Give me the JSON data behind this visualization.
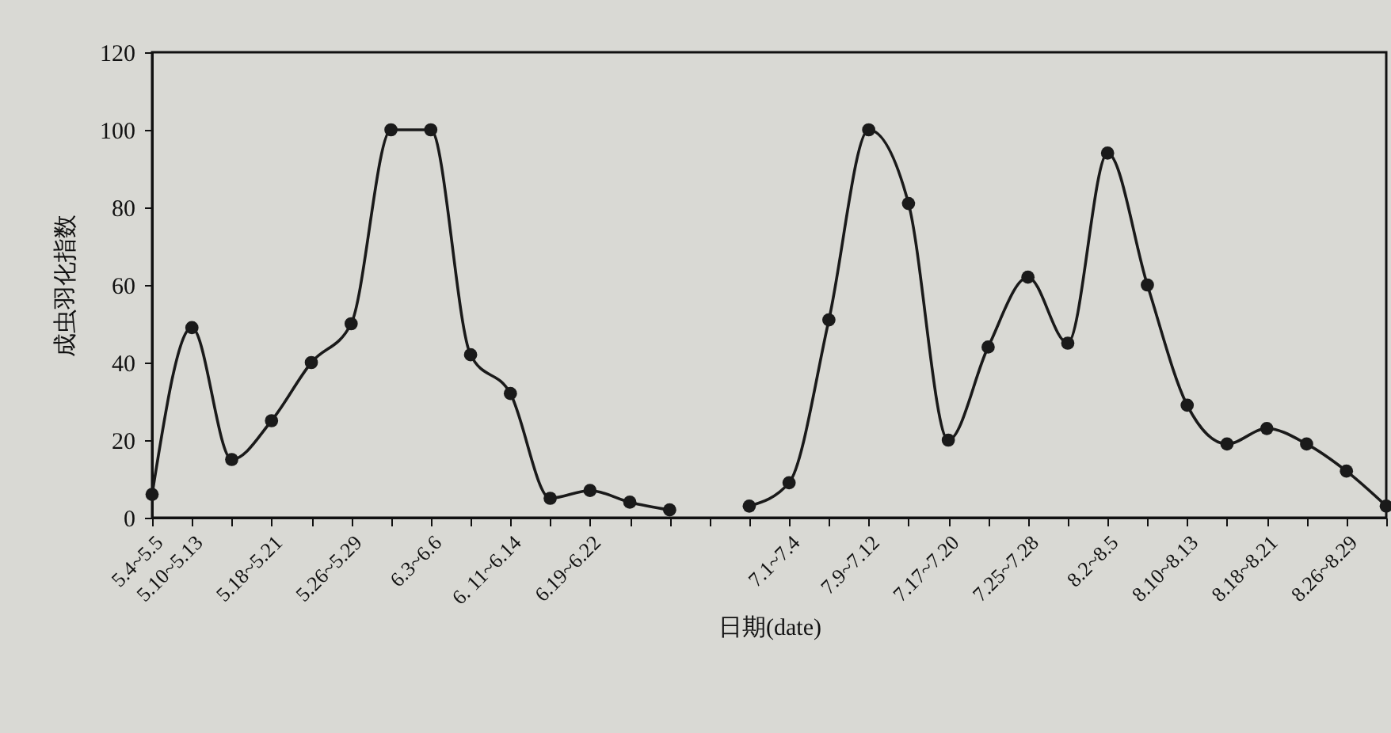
{
  "chart_data": {
    "type": "line",
    "xlabel": "日期(date)",
    "ylabel": "成虫羽化指数",
    "categories": [
      "5.4~5.5",
      "5.10~5.13",
      null,
      "5.18~5.21",
      null,
      "5.26~5.29",
      null,
      "6.3~6.6",
      null,
      "6. 11~6.14",
      null,
      "6.19~6.22",
      null,
      null,
      null,
      null,
      "7.1~7.4",
      null,
      "7.9~7.12",
      null,
      "7.17~7.20",
      null,
      "7.25~7.28",
      null,
      "8.2~8.5",
      null,
      "8.10~8.13",
      null,
      "8.18~8.21",
      null,
      "8.26~8.29",
      null
    ],
    "values": [
      6,
      49,
      15,
      25,
      40,
      50,
      100,
      100,
      42,
      32,
      5,
      7,
      4,
      2,
      null,
      3,
      9,
      51,
      100,
      81,
      20,
      44,
      62,
      45,
      94,
      60,
      29,
      19,
      23,
      19,
      12,
      3
    ],
    "color": "#1a1a1a",
    "marker": "circle",
    "ylim": [
      0,
      120
    ],
    "yticks": [
      0,
      20,
      40,
      60,
      80,
      100,
      120
    ]
  }
}
